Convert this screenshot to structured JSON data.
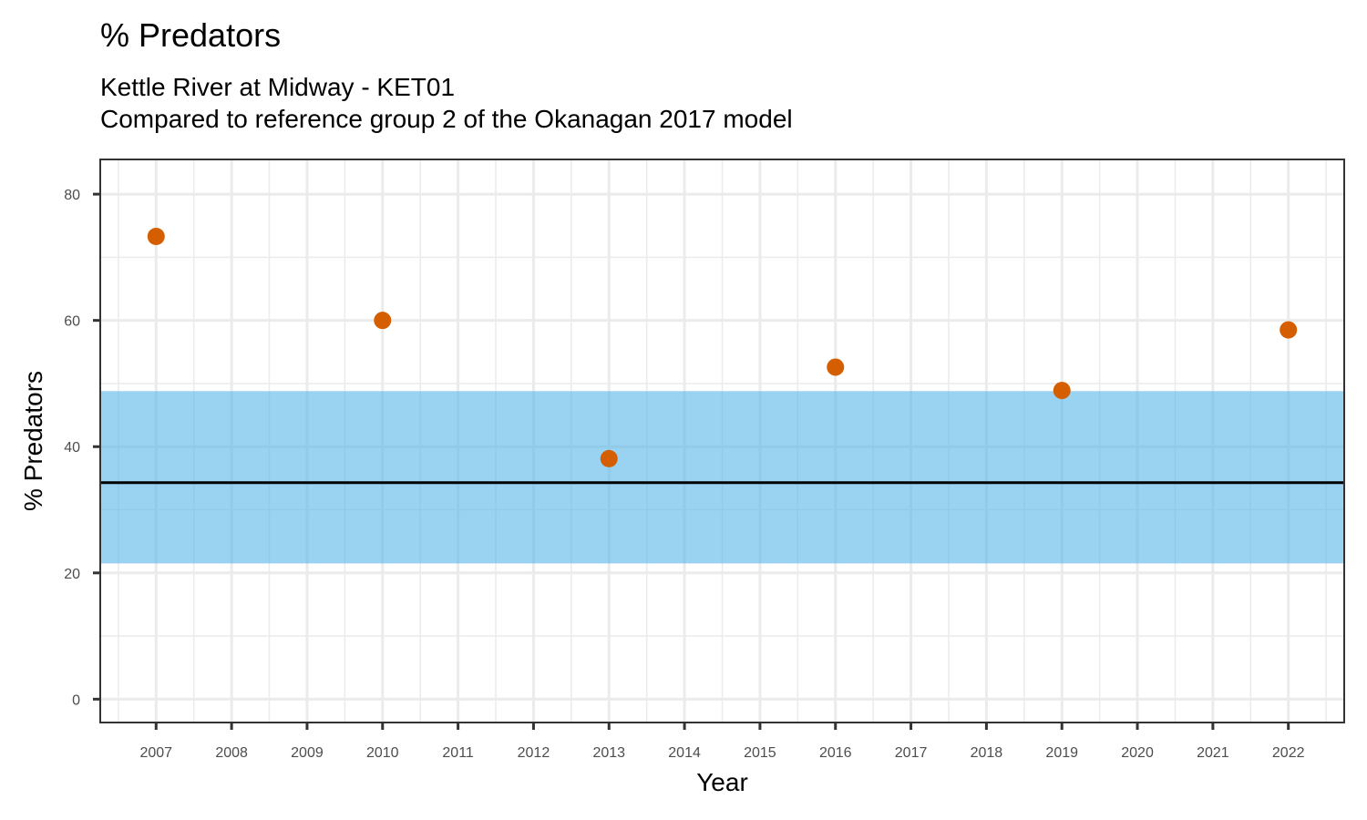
{
  "chart_data": {
    "type": "scatter",
    "title": "% Predators",
    "subtitle_lines": [
      "Kettle River at Midway - KET01",
      "Compared to reference group 2 of the Okanagan 2017 model"
    ],
    "xlabel": "Year",
    "ylabel": "% Predators",
    "x_ticks": [
      2007,
      2008,
      2009,
      2010,
      2011,
      2012,
      2013,
      2014,
      2015,
      2016,
      2017,
      2018,
      2019,
      2020,
      2021,
      2022
    ],
    "y_ticks": [
      0,
      20,
      40,
      60,
      80
    ],
    "xlim": [
      2006.26,
      2022.74
    ],
    "ylim": [
      -3.7,
      85.5
    ],
    "grid": true,
    "points": [
      {
        "x": 2007,
        "y": 73.3
      },
      {
        "x": 2010,
        "y": 60.0
      },
      {
        "x": 2013,
        "y": 38.1
      },
      {
        "x": 2016,
        "y": 52.6
      },
      {
        "x": 2019,
        "y": 48.9
      },
      {
        "x": 2022,
        "y": 58.5
      }
    ],
    "reference_band": {
      "lower": 21.5,
      "upper": 48.8,
      "color": "#56B4E9"
    },
    "reference_mean": 34.3,
    "point_color": "#D55E00",
    "mean_line_color": "#000000"
  }
}
